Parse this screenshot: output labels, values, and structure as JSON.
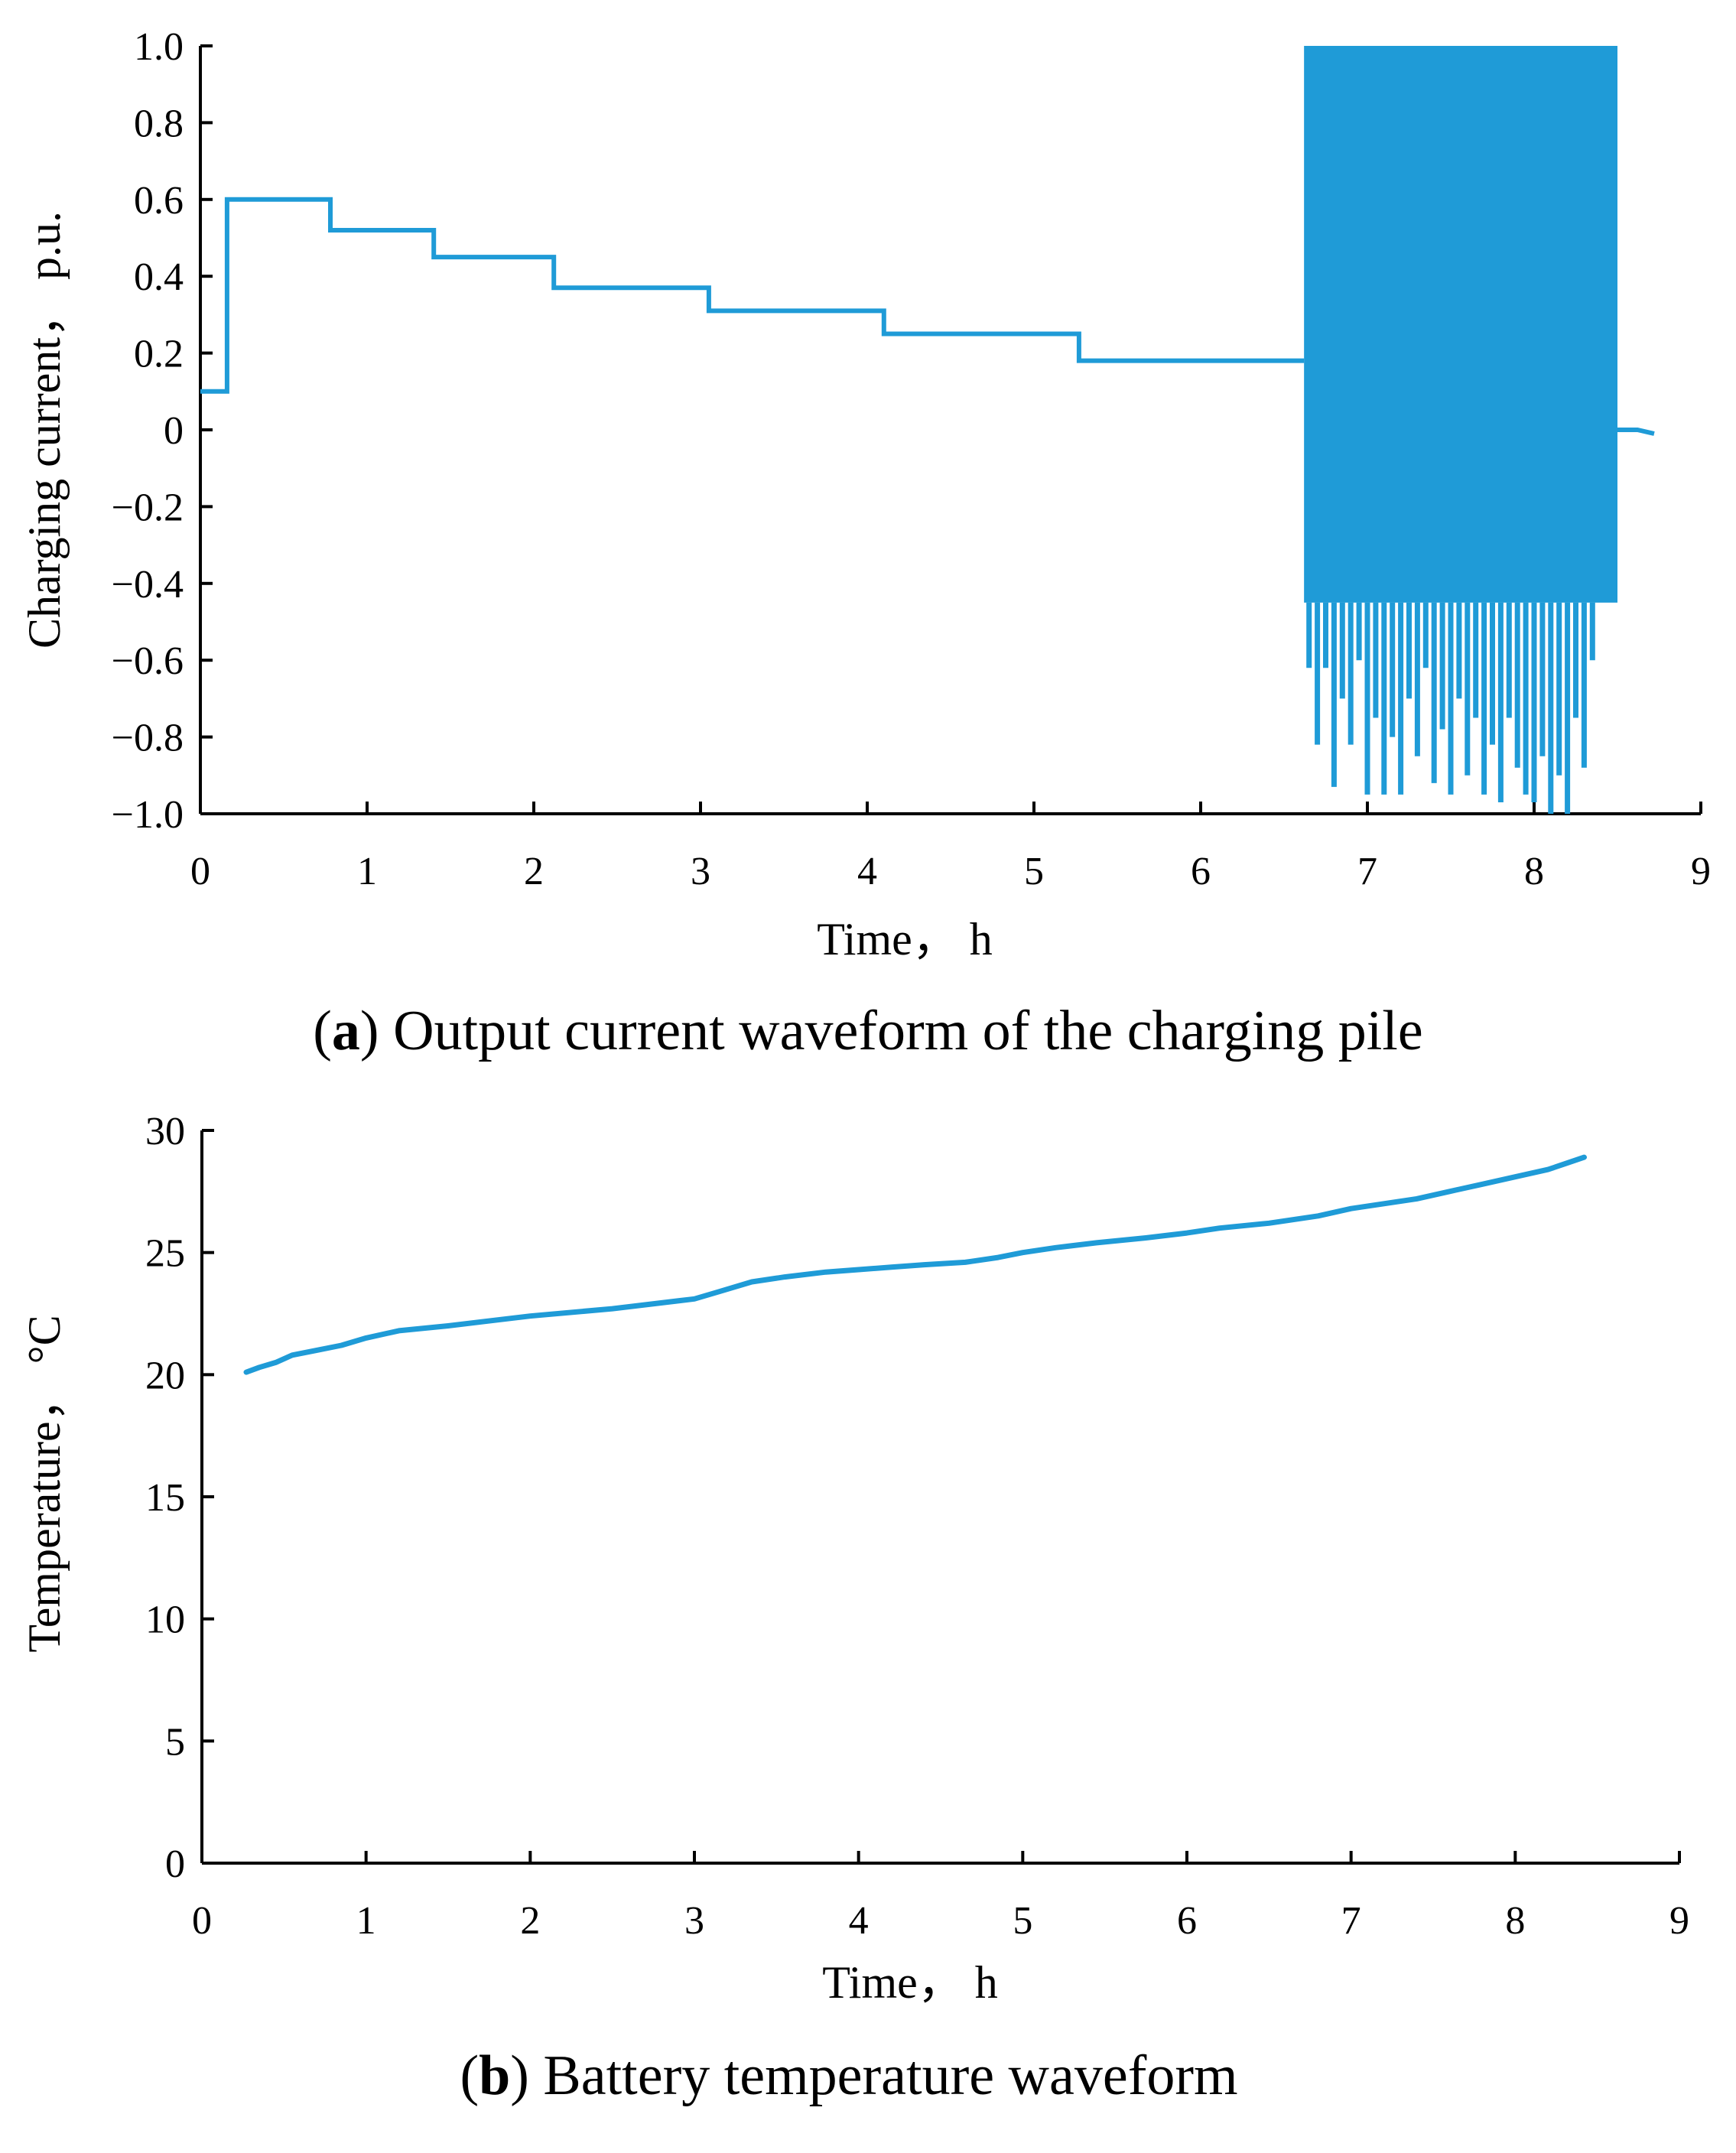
{
  "colors": {
    "series": "#1f9bd7",
    "axis": "#000000",
    "background": "#ffffff"
  },
  "chart_data": [
    {
      "id": "a",
      "type": "line",
      "caption_tag": "a",
      "caption_text": "Output current waveform of the charging pile",
      "xlabel": "Time，  h",
      "ylabel": "Charging current，  p.u.",
      "xlim": [
        0,
        9
      ],
      "ylim": [
        -1.0,
        1.0
      ],
      "xticks": [
        0,
        1,
        2,
        3,
        4,
        5,
        6,
        7,
        8,
        9
      ],
      "xtick_labels": [
        "0",
        "1",
        "2",
        "3",
        "4",
        "5",
        "6",
        "7",
        "8",
        "9"
      ],
      "yticks": [
        1.0,
        0.8,
        0.6,
        0.4,
        0.2,
        0,
        -0.2,
        -0.4,
        -0.6,
        -0.8,
        -1.0
      ],
      "ytick_labels": [
        "1.0",
        "0.8",
        "0.6",
        "0.4",
        "0.2",
        "0",
        "−0.2",
        "−0.4",
        "−0.6",
        "−0.8",
        "−1.0"
      ],
      "grid": false,
      "series": [
        {
          "name": "",
          "step_segments": [
            {
              "x_start": 0,
              "x_end": 0.16,
              "y": 0.1
            },
            {
              "x_start": 0.16,
              "x_end": 0.78,
              "y": 0.6
            },
            {
              "x_start": 0.78,
              "x_end": 1.4,
              "y": 0.52
            },
            {
              "x_start": 1.4,
              "x_end": 2.12,
              "y": 0.45
            },
            {
              "x_start": 2.12,
              "x_end": 3.05,
              "y": 0.37
            },
            {
              "x_start": 3.05,
              "x_end": 4.1,
              "y": 0.31
            },
            {
              "x_start": 4.1,
              "x_end": 5.27,
              "y": 0.25
            },
            {
              "x_start": 5.27,
              "x_end": 6.62,
              "y": 0.18
            }
          ],
          "oscillation": {
            "x_start": 6.62,
            "x_end": 8.5,
            "y_max": 1.0,
            "troughs": [
              [
                6.65,
                -0.62
              ],
              [
                6.7,
                -0.82
              ],
              [
                6.75,
                -0.62
              ],
              [
                6.8,
                -0.93
              ],
              [
                6.85,
                -0.7
              ],
              [
                6.9,
                -0.82
              ],
              [
                6.95,
                -0.6
              ],
              [
                7.0,
                -0.95
              ],
              [
                7.05,
                -0.75
              ],
              [
                7.1,
                -0.95
              ],
              [
                7.15,
                -0.8
              ],
              [
                7.2,
                -0.95
              ],
              [
                7.25,
                -0.7
              ],
              [
                7.3,
                -0.85
              ],
              [
                7.35,
                -0.62
              ],
              [
                7.4,
                -0.92
              ],
              [
                7.45,
                -0.78
              ],
              [
                7.5,
                -0.95
              ],
              [
                7.55,
                -0.7
              ],
              [
                7.6,
                -0.9
              ],
              [
                7.65,
                -0.75
              ],
              [
                7.7,
                -0.95
              ],
              [
                7.75,
                -0.82
              ],
              [
                7.8,
                -0.97
              ],
              [
                7.85,
                -0.75
              ],
              [
                7.9,
                -0.88
              ],
              [
                7.95,
                -0.95
              ],
              [
                8.0,
                -0.97
              ],
              [
                8.05,
                -0.85
              ],
              [
                8.1,
                -1.0
              ],
              [
                8.15,
                -0.9
              ],
              [
                8.2,
                -1.0
              ],
              [
                8.25,
                -0.75
              ],
              [
                8.3,
                -0.88
              ],
              [
                8.35,
                -0.6
              ],
              [
                8.4,
                -0.45
              ],
              [
                8.48,
                -0.45
              ]
            ]
          },
          "tail": [
            [
              8.5,
              0.0
            ],
            [
              8.62,
              0.0
            ],
            [
              8.72,
              -0.01
            ]
          ]
        }
      ]
    },
    {
      "id": "b",
      "type": "line",
      "caption_tag": "b",
      "caption_text": "Battery temperature waveform",
      "xlabel": "Time，  h",
      "ylabel": "Temperature，  °C",
      "xlim": [
        0,
        9
      ],
      "ylim": [
        0,
        30
      ],
      "xticks": [
        0,
        1,
        2,
        3,
        4,
        5,
        6,
        7,
        8,
        9
      ],
      "xtick_labels": [
        "0",
        "1",
        "2",
        "3",
        "4",
        "5",
        "6",
        "7",
        "8",
        "9"
      ],
      "yticks": [
        30,
        25,
        20,
        15,
        10,
        5,
        0
      ],
      "ytick_labels": [
        "30",
        "25",
        "20",
        "15",
        "10",
        "5",
        "0"
      ],
      "grid": false,
      "series": [
        {
          "name": "",
          "x": [
            0.27,
            0.35,
            0.45,
            0.55,
            0.7,
            0.85,
            1.0,
            1.2,
            1.5,
            2.0,
            2.5,
            3.0,
            3.15,
            3.35,
            3.55,
            3.8,
            4.0,
            4.2,
            4.4,
            4.65,
            4.85,
            5.0,
            5.2,
            5.45,
            5.75,
            6.0,
            6.2,
            6.5,
            6.8,
            7.0,
            7.2,
            7.4,
            7.6,
            7.8,
            8.0,
            8.2,
            8.42
          ],
          "y": [
            20.1,
            20.3,
            20.5,
            20.8,
            21.0,
            21.2,
            21.5,
            21.8,
            22.0,
            22.4,
            22.7,
            23.1,
            23.4,
            23.8,
            24.0,
            24.2,
            24.3,
            24.4,
            24.5,
            24.6,
            24.8,
            25.0,
            25.2,
            25.4,
            25.6,
            25.8,
            26.0,
            26.2,
            26.5,
            26.8,
            27.0,
            27.2,
            27.5,
            27.8,
            28.1,
            28.4,
            28.9
          ]
        }
      ]
    }
  ]
}
